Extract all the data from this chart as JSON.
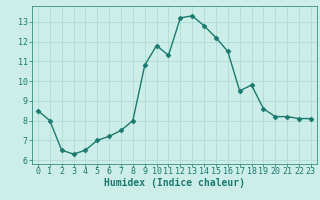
{
  "x": [
    0,
    1,
    2,
    3,
    4,
    5,
    6,
    7,
    8,
    9,
    10,
    11,
    12,
    13,
    14,
    15,
    16,
    17,
    18,
    19,
    20,
    21,
    22,
    23
  ],
  "y": [
    8.5,
    8.0,
    6.5,
    6.3,
    6.5,
    7.0,
    7.2,
    7.5,
    8.0,
    10.8,
    11.8,
    11.3,
    13.2,
    13.3,
    12.8,
    12.2,
    11.5,
    9.5,
    9.8,
    8.6,
    8.2,
    8.2,
    8.1,
    8.1
  ],
  "line_color": "#1a7a6e",
  "marker": "D",
  "marker_size": 2.5,
  "line_width": 1.0,
  "bg_color": "#cdeee8",
  "grid_color": "#b0dcd5",
  "xlabel": "Humidex (Indice chaleur)",
  "xlabel_fontsize": 7,
  "tick_fontsize": 6,
  "xlim": [
    -0.5,
    23.5
  ],
  "ylim": [
    5.8,
    13.8
  ],
  "yticks": [
    6,
    7,
    8,
    9,
    10,
    11,
    12,
    13
  ],
  "xticks": [
    0,
    1,
    2,
    3,
    4,
    5,
    6,
    7,
    8,
    9,
    10,
    11,
    12,
    13,
    14,
    15,
    16,
    17,
    18,
    19,
    20,
    21,
    22,
    23
  ]
}
